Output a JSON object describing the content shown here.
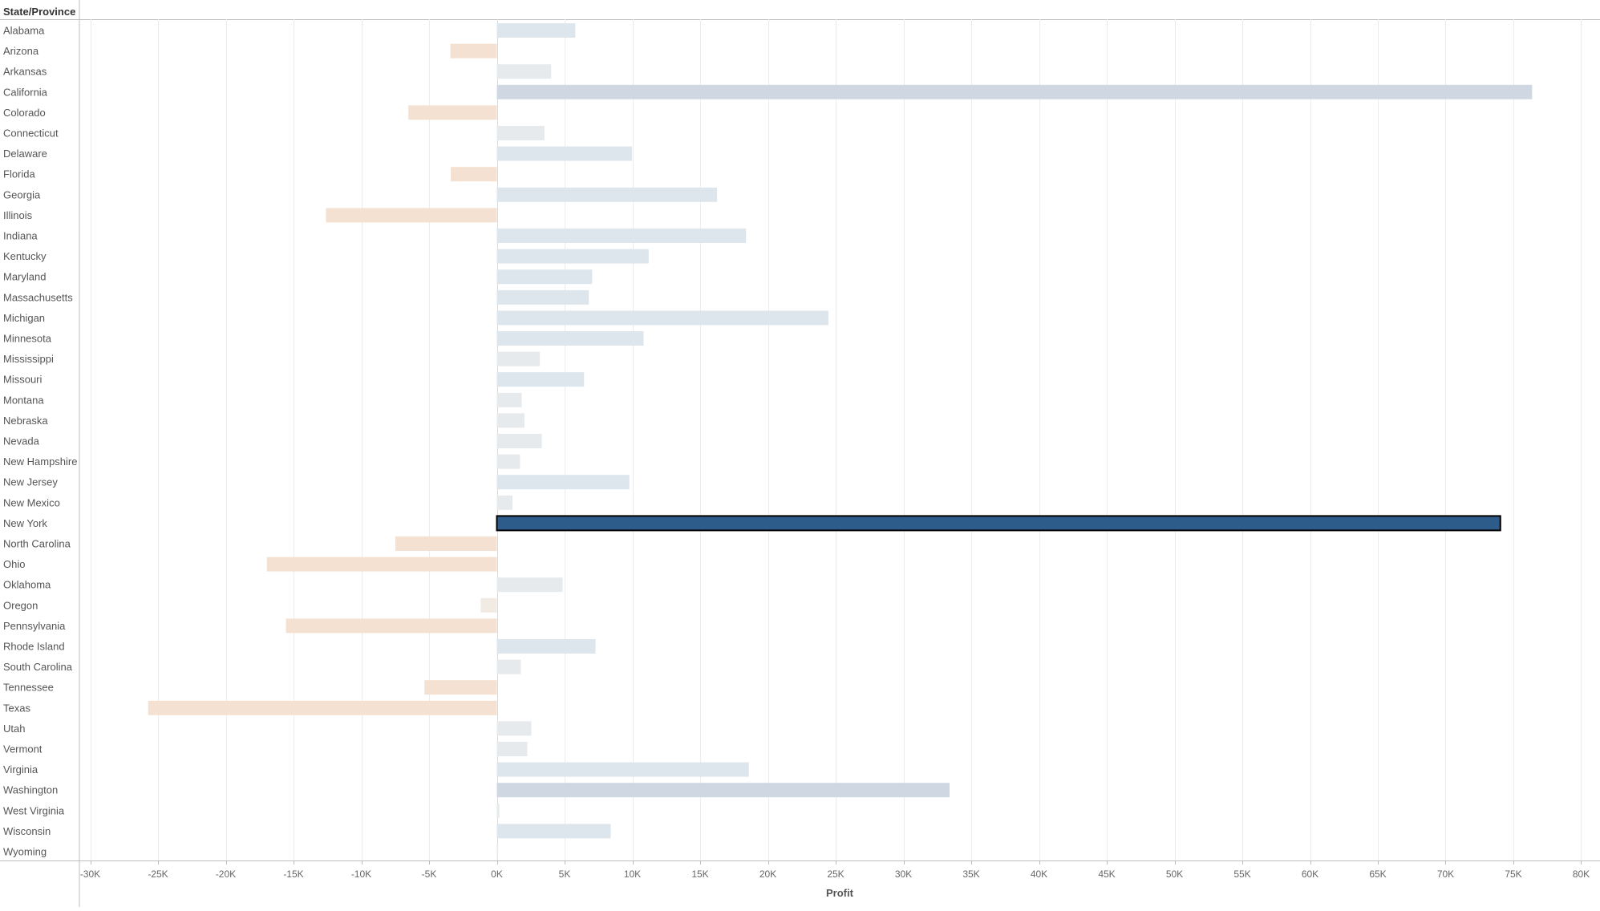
{
  "chart_data": {
    "type": "bar",
    "orientation": "horizontal",
    "row_header": "State/Province",
    "xlabel": "Profit",
    "xlim": [
      -31000,
      81000
    ],
    "x_ticks": [
      -30000,
      -25000,
      -20000,
      -15000,
      -10000,
      -5000,
      0,
      5000,
      10000,
      15000,
      20000,
      25000,
      30000,
      35000,
      40000,
      45000,
      50000,
      55000,
      60000,
      65000,
      70000,
      75000,
      80000
    ],
    "x_tick_labels": [
      "-30K",
      "-25K",
      "-20K",
      "-15K",
      "-10K",
      "-5K",
      "0K",
      "5K",
      "10K",
      "15K",
      "20K",
      "25K",
      "30K",
      "35K",
      "40K",
      "45K",
      "50K",
      "55K",
      "60K",
      "65K",
      "70K",
      "75K",
      "80K"
    ],
    "grid": true,
    "highlighted": "New York",
    "categories": [
      "Alabama",
      "Arizona",
      "Arkansas",
      "California",
      "Colorado",
      "Connecticut",
      "Delaware",
      "Florida",
      "Georgia",
      "Illinois",
      "Indiana",
      "Kentucky",
      "Maryland",
      "Massachusetts",
      "Michigan",
      "Minnesota",
      "Mississippi",
      "Missouri",
      "Montana",
      "Nebraska",
      "Nevada",
      "New Hampshire",
      "New Jersey",
      "New Mexico",
      "New York",
      "North Carolina",
      "Ohio",
      "Oklahoma",
      "Oregon",
      "Pennsylvania",
      "Rhode Island",
      "South Carolina",
      "Tennessee",
      "Texas",
      "Utah",
      "Vermont",
      "Virginia",
      "Washington",
      "West Virginia",
      "Wisconsin",
      "Wyoming"
    ],
    "values": [
      5787,
      -3428,
      4009,
      76381,
      -6528,
      3511,
      9977,
      -3399,
      16250,
      -12608,
      18383,
      11200,
      7031,
      6786,
      24463,
      10823,
      3172,
      6436,
      1837,
      2037,
      3317,
      1707,
      9773,
      1157,
      74039,
      -7491,
      -16971,
      4854,
      -1191,
      -15560,
      7286,
      1770,
      -5342,
      -25729,
      2547,
      2245,
      18598,
      33403,
      186,
      8402,
      100
    ],
    "colors": {
      "highlight_fill": "#2e5c8a",
      "highlight_outline": "#000000",
      "positive_strong": "#cfd8e2",
      "positive_mid": "#dde6ed",
      "positive_light": "#e6eaec",
      "negative_strong": "#f4e1d2",
      "negative_light": "#f2ebe3",
      "gridline": "#ececec",
      "axis": "#bdbdbd"
    }
  }
}
